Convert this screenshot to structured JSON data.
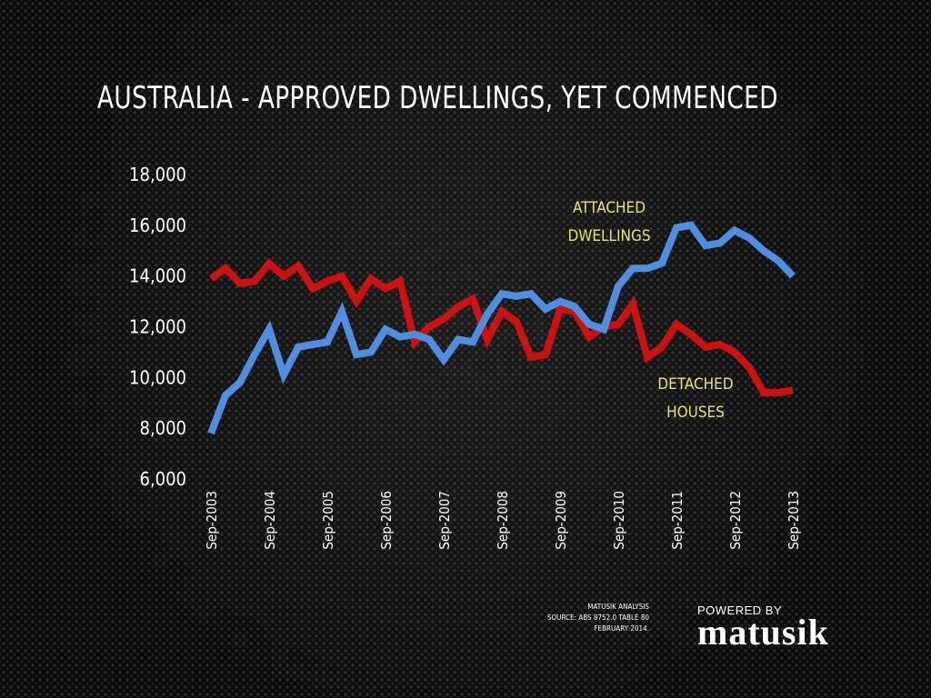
{
  "title": "AUSTRALIA - APPROVED DWELLINGS, YET COMMENCED",
  "source": {
    "line1": "MATUSIK ANALYSIS",
    "line2": "SOURCE: ABS 8752.0 TABLE 80",
    "line3": "FEBRUARY 2014."
  },
  "brand": {
    "powered_by": "POWERED BY",
    "name": "matusik"
  },
  "colors": {
    "attached": "#4f8ee0",
    "detached": "#cc1111",
    "annotation": "#e7e56a"
  },
  "chart_data": {
    "type": "line",
    "title": "AUSTRALIA - APPROVED DWELLINGS, YET COMMENCED",
    "ylim": [
      6000,
      18000
    ],
    "yticks": [
      6000,
      8000,
      10000,
      12000,
      14000,
      16000,
      18000
    ],
    "ytick_labels": [
      "6,000",
      "8,000",
      "10,000",
      "12,000",
      "14,000",
      "16,000",
      "18,000"
    ],
    "xtick_labels": [
      "Sep-2003",
      "Sep-2004",
      "Sep-2005",
      "Sep-2006",
      "Sep-2007",
      "Sep-2008",
      "Sep-2009",
      "Sep-2010",
      "Sep-2011",
      "Sep-2012",
      "Sep-2013"
    ],
    "x": [
      "Sep-2003",
      "Dec-2003",
      "Mar-2004",
      "Jun-2004",
      "Sep-2004",
      "Dec-2004",
      "Mar-2005",
      "Jun-2005",
      "Sep-2005",
      "Dec-2005",
      "Mar-2006",
      "Jun-2006",
      "Sep-2006",
      "Dec-2006",
      "Mar-2007",
      "Jun-2007",
      "Sep-2007",
      "Dec-2007",
      "Mar-2008",
      "Jun-2008",
      "Sep-2008",
      "Dec-2008",
      "Mar-2009",
      "Jun-2009",
      "Sep-2009",
      "Dec-2009",
      "Mar-2010",
      "Jun-2010",
      "Sep-2010",
      "Dec-2010",
      "Mar-2011",
      "Jun-2011",
      "Sep-2011",
      "Dec-2011",
      "Mar-2012",
      "Jun-2012",
      "Sep-2012",
      "Dec-2012",
      "Mar-2013",
      "Jun-2013",
      "Sep-2013"
    ],
    "series": [
      {
        "name": "ATTACHED DWELLINGS",
        "values": [
          7800,
          9300,
          9800,
          10900,
          11900,
          10100,
          11200,
          11300,
          11400,
          12600,
          10900,
          11000,
          11900,
          11600,
          11700,
          11500,
          10700,
          11500,
          11400,
          12500,
          13300,
          13200,
          13300,
          12700,
          13000,
          12800,
          12100,
          11900,
          13600,
          14300,
          14300,
          14500,
          15900,
          16000,
          15200,
          15300,
          15800,
          15500,
          15000,
          14600,
          14000
        ]
      },
      {
        "name": "DETACHED HOUSES",
        "values": [
          13900,
          14300,
          13700,
          13800,
          14500,
          14000,
          14400,
          13500,
          13800,
          14000,
          13000,
          13900,
          13500,
          13800,
          11400,
          12000,
          12300,
          12800,
          13100,
          11500,
          12600,
          12200,
          10800,
          10900,
          12700,
          12600,
          11600,
          12000,
          12100,
          12900,
          10800,
          11200,
          12100,
          11700,
          11200,
          11300,
          11000,
          10400,
          9400,
          9400,
          9500
        ]
      }
    ],
    "annotations": [
      {
        "series": "ATTACHED DWELLINGS",
        "lines": [
          "ATTACHED",
          "DWELLINGS"
        ]
      },
      {
        "series": "DETACHED HOUSES",
        "lines": [
          "DETACHED",
          "HOUSES"
        ]
      }
    ],
    "grid": false,
    "legend": "none"
  }
}
